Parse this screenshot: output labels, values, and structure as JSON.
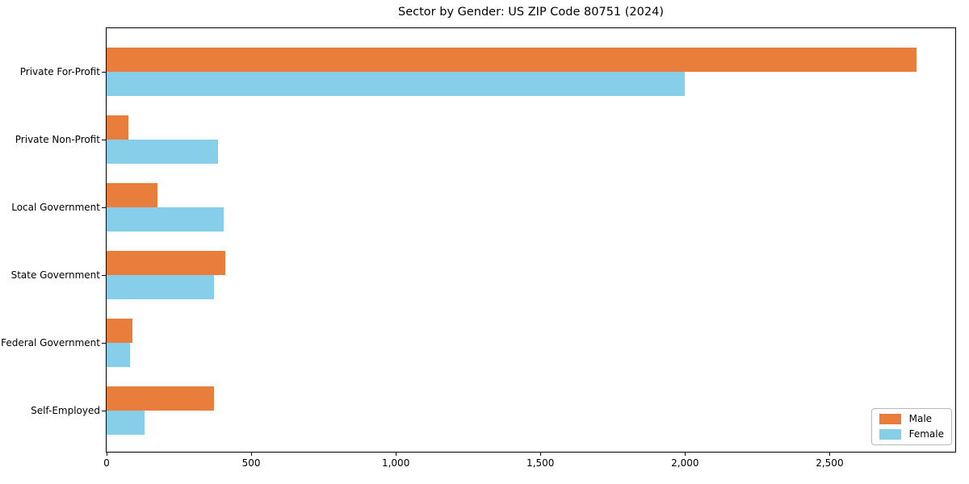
{
  "title": "Sector by Gender: US ZIP Code 80751 (2024)",
  "colors": {
    "male": "#E87D3C",
    "female": "#87CEEB",
    "axis": "#000000",
    "legend_border": "#b9b9b9",
    "background": "#ffffff"
  },
  "chart_data": {
    "type": "bar",
    "orientation": "horizontal",
    "title": "Sector by Gender: US ZIP Code 80751 (2024)",
    "xlabel": "",
    "ylabel": "",
    "categories": [
      "Private For-Profit",
      "Private Non-Profit",
      "Local Government",
      "State Government",
      "Federal Government",
      "Self-Employed"
    ],
    "series": [
      {
        "name": "Male",
        "color": "#E87D3C",
        "values": [
          2800,
          75,
          175,
          410,
          90,
          370
        ]
      },
      {
        "name": "Female",
        "color": "#87CEEB",
        "values": [
          2000,
          385,
          405,
          370,
          80,
          130
        ]
      }
    ],
    "xlim": [
      0,
      2940
    ],
    "xticks": [
      0,
      500,
      1000,
      1500,
      2000,
      2500
    ],
    "xtick_labels": [
      "0",
      "500",
      "1,000",
      "1,500",
      "2,000",
      "2,500"
    ],
    "grid": false,
    "legend_position": "lower right"
  },
  "legend": {
    "items": [
      {
        "label": "Male"
      },
      {
        "label": "Female"
      }
    ]
  }
}
